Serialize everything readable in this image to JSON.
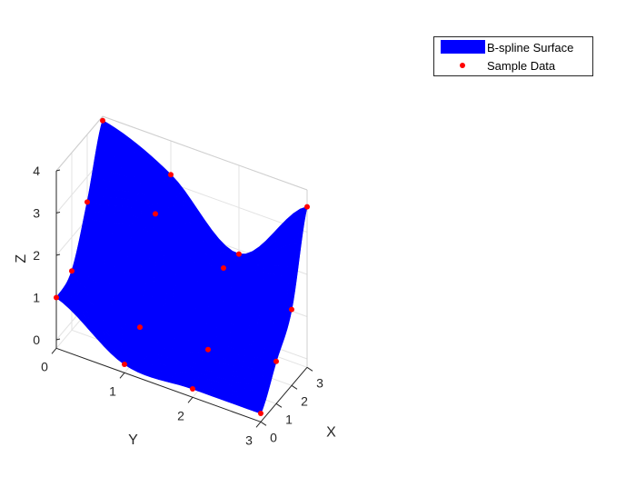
{
  "chart_data": {
    "type": "surface3d",
    "title": "",
    "xlabel": "X",
    "ylabel": "Y",
    "zlabel": "Z",
    "xlim": [
      0,
      3
    ],
    "ylim": [
      0,
      3
    ],
    "zlim": [
      -0.2,
      4
    ],
    "xticks": [
      "0",
      "1",
      "2",
      "3"
    ],
    "yticks": [
      "0",
      "1",
      "2",
      "3"
    ],
    "zticks": [
      "0",
      "1",
      "2",
      "3",
      "4"
    ],
    "grid": true,
    "legend_position": "top-right",
    "series": [
      {
        "name": "B-spline Surface",
        "kind": "surface",
        "color": "#0000ff",
        "control_points": [
          [
            [
              0,
              0,
              1.0
            ],
            [
              0,
              1,
              1.2
            ],
            [
              0,
              2,
              2.4
            ],
            [
              0,
              3,
              3.9
            ]
          ],
          [
            [
              1,
              0,
              0.0
            ],
            [
              1,
              1,
              0.45
            ],
            [
              1,
              2,
              2.7
            ],
            [
              1,
              3,
              3.2
            ]
          ],
          [
            [
              2,
              0,
              0.0
            ],
            [
              2,
              1,
              0.5
            ],
            [
              2,
              2,
              2.0
            ],
            [
              2,
              3,
              1.9
            ]
          ],
          [
            [
              3,
              0,
              0.0
            ],
            [
              3,
              1,
              0.8
            ],
            [
              3,
              2,
              1.6
            ],
            [
              3,
              3,
              3.6
            ]
          ]
        ]
      },
      {
        "name": "Sample Data",
        "kind": "scatter",
        "color": "#ff0000",
        "points": [
          [
            0,
            0,
            1.0
          ],
          [
            0,
            1,
            1.2
          ],
          [
            0,
            2,
            2.4
          ],
          [
            0,
            3,
            3.9
          ],
          [
            1,
            0,
            0.0
          ],
          [
            1,
            1,
            0.45
          ],
          [
            1,
            2,
            2.7
          ],
          [
            1,
            3,
            3.2
          ],
          [
            2,
            0,
            0.0
          ],
          [
            2,
            1,
            0.5
          ],
          [
            2,
            2,
            2.0
          ],
          [
            2,
            3,
            1.9
          ],
          [
            3,
            0,
            0.0
          ],
          [
            3,
            1,
            0.8
          ],
          [
            3,
            2,
            1.6
          ],
          [
            3,
            3,
            3.6
          ]
        ]
      }
    ]
  }
}
